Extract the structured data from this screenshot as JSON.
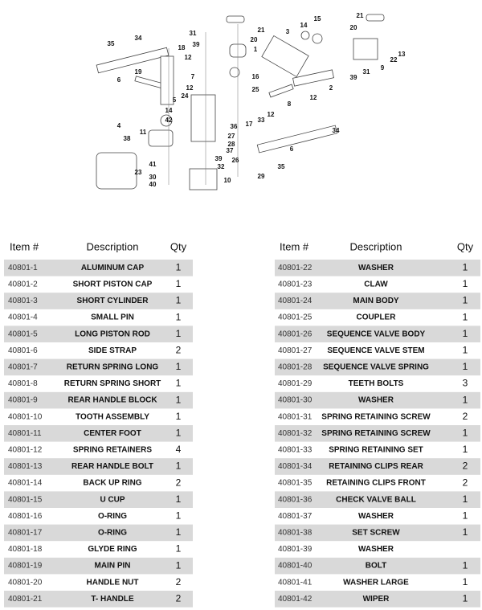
{
  "diagram": {
    "callouts": [
      "35",
      "34",
      "6",
      "19",
      "31",
      "39",
      "18",
      "12",
      "7",
      "12",
      "5",
      "14",
      "42",
      "24",
      "4",
      "11",
      "38",
      "23",
      "41",
      "30",
      "40",
      "39",
      "32",
      "10",
      "36",
      "27",
      "28",
      "37",
      "26",
      "21",
      "20",
      "1",
      "3",
      "14",
      "15",
      "16",
      "25",
      "8",
      "12",
      "17",
      "33",
      "29",
      "35",
      "6",
      "34",
      "12",
      "2",
      "39",
      "31",
      "9",
      "22",
      "13",
      "21",
      "20"
    ]
  },
  "tables": [
    {
      "headers": [
        "Item #",
        "Description",
        "Qty"
      ],
      "rows": [
        [
          "40801-1",
          "ALUMINUM CAP",
          "1"
        ],
        [
          "40801-2",
          "SHORT PISTON CAP",
          "1"
        ],
        [
          "40801-3",
          "SHORT CYLINDER",
          "1"
        ],
        [
          "40801-4",
          "SMALL PIN",
          "1"
        ],
        [
          "40801-5",
          "LONG PISTON ROD",
          "1"
        ],
        [
          "40801-6",
          "SIDE STRAP",
          "2"
        ],
        [
          "40801-7",
          "RETURN SPRING LONG",
          "1"
        ],
        [
          "40801-8",
          "RETURN SPRING SHORT",
          "1"
        ],
        [
          "40801-9",
          "REAR HANDLE BLOCK",
          "1"
        ],
        [
          "40801-10",
          "TOOTH ASSEMBLY",
          "1"
        ],
        [
          "40801-11",
          "CENTER FOOT",
          "1"
        ],
        [
          "40801-12",
          "SPRING RETAINERS",
          "4"
        ],
        [
          "40801-13",
          "REAR HANDLE BOLT",
          "1"
        ],
        [
          "40801-14",
          "BACK UP RING",
          "2"
        ],
        [
          "40801-15",
          "U CUP",
          "1"
        ],
        [
          "40801-16",
          "O-RING",
          "1"
        ],
        [
          "40801-17",
          "O-RING",
          "1"
        ],
        [
          "40801-18",
          "GLYDE RING",
          "1"
        ],
        [
          "40801-19",
          "MAIN PIN",
          "1"
        ],
        [
          "40801-20",
          "HANDLE NUT",
          "2"
        ],
        [
          "40801-21",
          "T- HANDLE",
          "2"
        ]
      ]
    },
    {
      "headers": [
        "Item #",
        "Description",
        "Qty"
      ],
      "rows": [
        [
          "40801-22",
          "WASHER",
          "1"
        ],
        [
          "40801-23",
          "CLAW",
          "1"
        ],
        [
          "40801-24",
          "MAIN BODY",
          "1"
        ],
        [
          "40801-25",
          "COUPLER",
          "1"
        ],
        [
          "40801-26",
          "SEQUENCE VALVE BODY",
          "1"
        ],
        [
          "40801-27",
          "SEQUENCE VALVE STEM",
          "1"
        ],
        [
          "40801-28",
          "SEQUENCE VALVE SPRING",
          "1"
        ],
        [
          "40801-29",
          "TEETH BOLTS",
          "3"
        ],
        [
          "40801-30",
          "WASHER",
          "1"
        ],
        [
          "40801-31",
          "SPRING RETAINING SCREW",
          "2"
        ],
        [
          "40801-32",
          "SPRING RETAINING SCREW",
          "1"
        ],
        [
          "40801-33",
          "SPRING RETAINING  SET",
          "1"
        ],
        [
          "40801-34",
          "RETAINING CLIPS REAR",
          "2"
        ],
        [
          "40801-35",
          "RETAINING CLIPS FRONT",
          "2"
        ],
        [
          "40801-36",
          "CHECK VALVE BALL",
          "1"
        ],
        [
          "40801-37",
          "WASHER",
          "1"
        ],
        [
          "40801-38",
          "SET SCREW",
          "1"
        ],
        [
          "40801-39",
          "WASHER",
          null
        ],
        [
          "40801-40",
          "BOLT",
          "1"
        ],
        [
          "40801-41",
          "WASHER LARGE",
          "1"
        ],
        [
          "40801-42",
          "WIPER",
          "1"
        ]
      ]
    }
  ]
}
